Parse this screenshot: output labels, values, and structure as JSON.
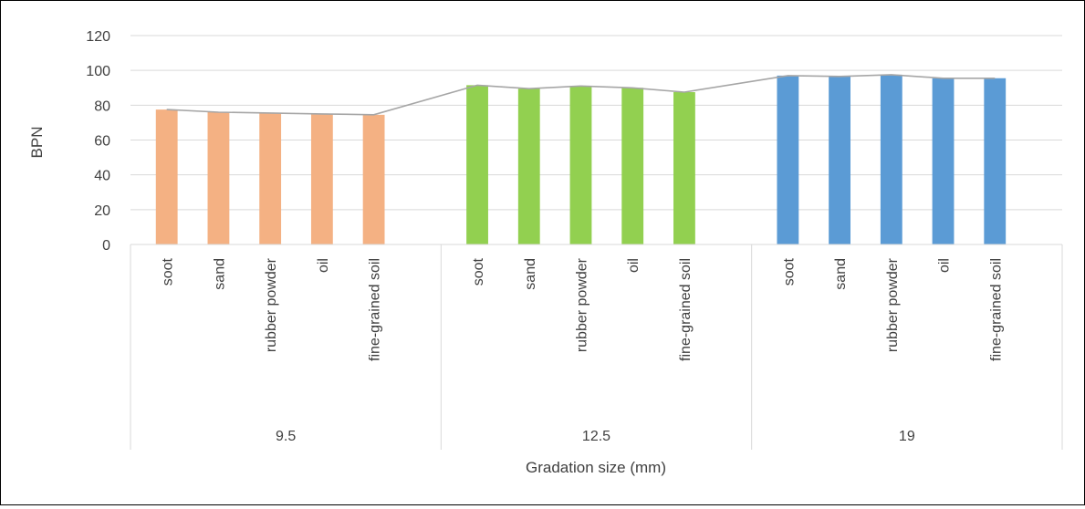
{
  "chart_data": {
    "type": "bar",
    "title": "",
    "xlabel": "Gradation size (mm)",
    "ylabel": "BPN",
    "ylim": [
      0,
      120
    ],
    "yticks": [
      0,
      20,
      40,
      60,
      80,
      100,
      120
    ],
    "grid": true,
    "legend": "none",
    "groups": [
      {
        "label": "9.5",
        "color": "#f4b183",
        "categories": [
          "soot",
          "sand",
          "rubber powder",
          "oil",
          "fine-grained soil"
        ],
        "values": [
          77.5,
          76,
          75.5,
          75,
          74.5
        ]
      },
      {
        "label": "12.5",
        "color": "#92d050",
        "categories": [
          "soot",
          "sand",
          "rubber powder",
          "oil",
          "fine-grained soil"
        ],
        "values": [
          91.5,
          89.5,
          91,
          90,
          87.5
        ]
      },
      {
        "label": "19",
        "color": "#5b9bd5",
        "categories": [
          "soot",
          "sand",
          "rubber powder",
          "oil",
          "fine-grained soil"
        ],
        "values": [
          97,
          96.5,
          97.5,
          95.5,
          95.5
        ]
      }
    ],
    "trend_line": {
      "type": "line",
      "color": "#a6a6a6"
    }
  }
}
